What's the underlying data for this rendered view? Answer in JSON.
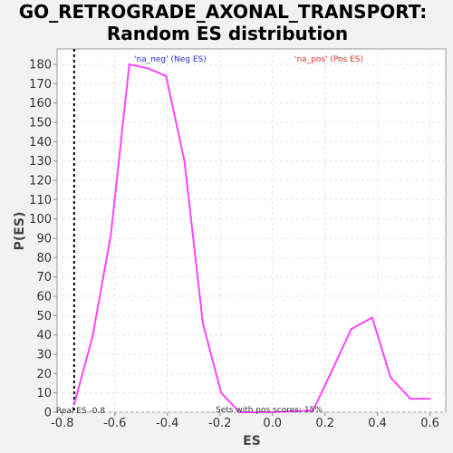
{
  "chart_data": {
    "type": "line",
    "title_line1": "GO_RETROGRADE_AXONAL_TRANSPORT:",
    "title_line2": "Random ES distribution",
    "xlabel": "ES",
    "ylabel": "P(ES)",
    "xlim": [
      -0.82,
      0.66
    ],
    "ylim": [
      0,
      188
    ],
    "x_ticks": [
      -0.8,
      -0.6,
      -0.4,
      -0.2,
      0.0,
      0.2,
      0.4,
      0.6
    ],
    "x_tick_labels": [
      "-0.8",
      "-0.6",
      "-0.4",
      "-0.2",
      "0.0",
      "0.2",
      "0.4",
      "0.6"
    ],
    "y_ticks": [
      0,
      10,
      20,
      30,
      40,
      50,
      60,
      70,
      80,
      90,
      100,
      110,
      120,
      130,
      140,
      150,
      160,
      170,
      180
    ],
    "grid": true,
    "series": [
      {
        "color": "#ff44ff",
        "x": [
          -0.755,
          -0.685,
          -0.615,
          -0.545,
          -0.475,
          -0.405,
          -0.335,
          -0.265,
          -0.195,
          -0.125,
          0.0,
          0.155,
          0.225,
          0.3,
          0.38,
          0.45,
          0.525,
          0.6
        ],
        "y": [
          4,
          39,
          92,
          180,
          178,
          174,
          130,
          46,
          10,
          0,
          0,
          1,
          21,
          43,
          49,
          18,
          7,
          7
        ]
      }
    ],
    "legend": [
      {
        "text": "'na_neg' (Neg ES)",
        "color": "#2b2bd6"
      },
      {
        "text": "'na_pos' (Pos ES)",
        "color": "#e0302f"
      }
    ],
    "real_es": -0.755,
    "real_es_label": "Real ES -0.8",
    "pos_scores_label": "Sets with pos scores: 15%"
  }
}
